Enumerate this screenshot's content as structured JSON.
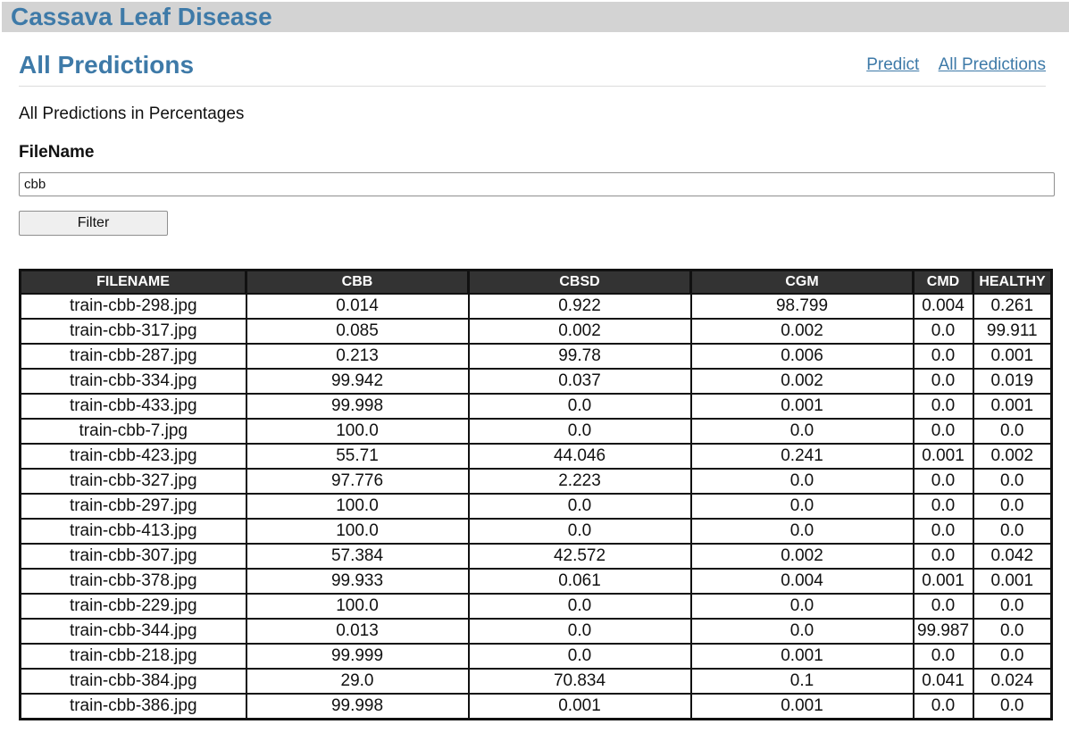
{
  "app": {
    "title": "Cassava Leaf Disease"
  },
  "header": {
    "title": "All Predictions",
    "nav": [
      {
        "label": "Predict"
      },
      {
        "label": "All Predictions"
      }
    ]
  },
  "main": {
    "subtitle": "All Predictions in Percentages",
    "filter": {
      "label": "FileName",
      "value": "cbb",
      "button_label": "Filter"
    },
    "table": {
      "columns": [
        "FILENAME",
        "CBB",
        "CBSD",
        "CGM",
        "CMD",
        "HEALTHY"
      ],
      "rows": [
        [
          "train-cbb-298.jpg",
          "0.014",
          "0.922",
          "98.799",
          "0.004",
          "0.261"
        ],
        [
          "train-cbb-317.jpg",
          "0.085",
          "0.002",
          "0.002",
          "0.0",
          "99.911"
        ],
        [
          "train-cbb-287.jpg",
          "0.213",
          "99.78",
          "0.006",
          "0.0",
          "0.001"
        ],
        [
          "train-cbb-334.jpg",
          "99.942",
          "0.037",
          "0.002",
          "0.0",
          "0.019"
        ],
        [
          "train-cbb-433.jpg",
          "99.998",
          "0.0",
          "0.001",
          "0.0",
          "0.001"
        ],
        [
          "train-cbb-7.jpg",
          "100.0",
          "0.0",
          "0.0",
          "0.0",
          "0.0"
        ],
        [
          "train-cbb-423.jpg",
          "55.71",
          "44.046",
          "0.241",
          "0.001",
          "0.002"
        ],
        [
          "train-cbb-327.jpg",
          "97.776",
          "2.223",
          "0.0",
          "0.0",
          "0.0"
        ],
        [
          "train-cbb-297.jpg",
          "100.0",
          "0.0",
          "0.0",
          "0.0",
          "0.0"
        ],
        [
          "train-cbb-413.jpg",
          "100.0",
          "0.0",
          "0.0",
          "0.0",
          "0.0"
        ],
        [
          "train-cbb-307.jpg",
          "57.384",
          "42.572",
          "0.002",
          "0.0",
          "0.042"
        ],
        [
          "train-cbb-378.jpg",
          "99.933",
          "0.061",
          "0.004",
          "0.001",
          "0.001"
        ],
        [
          "train-cbb-229.jpg",
          "100.0",
          "0.0",
          "0.0",
          "0.0",
          "0.0"
        ],
        [
          "train-cbb-344.jpg",
          "0.013",
          "0.0",
          "0.0",
          "99.987",
          "0.0"
        ],
        [
          "train-cbb-218.jpg",
          "99.999",
          "0.0",
          "0.001",
          "0.0",
          "0.0"
        ],
        [
          "train-cbb-384.jpg",
          "29.0",
          "70.834",
          "0.1",
          "0.041",
          "0.024"
        ],
        [
          "train-cbb-386.jpg",
          "99.998",
          "0.001",
          "0.001",
          "0.0",
          "0.0"
        ]
      ]
    }
  },
  "colors": {
    "accent": "#3e7aa8",
    "banner_bg": "#d3d3d3",
    "table_header_bg": "#333333"
  }
}
